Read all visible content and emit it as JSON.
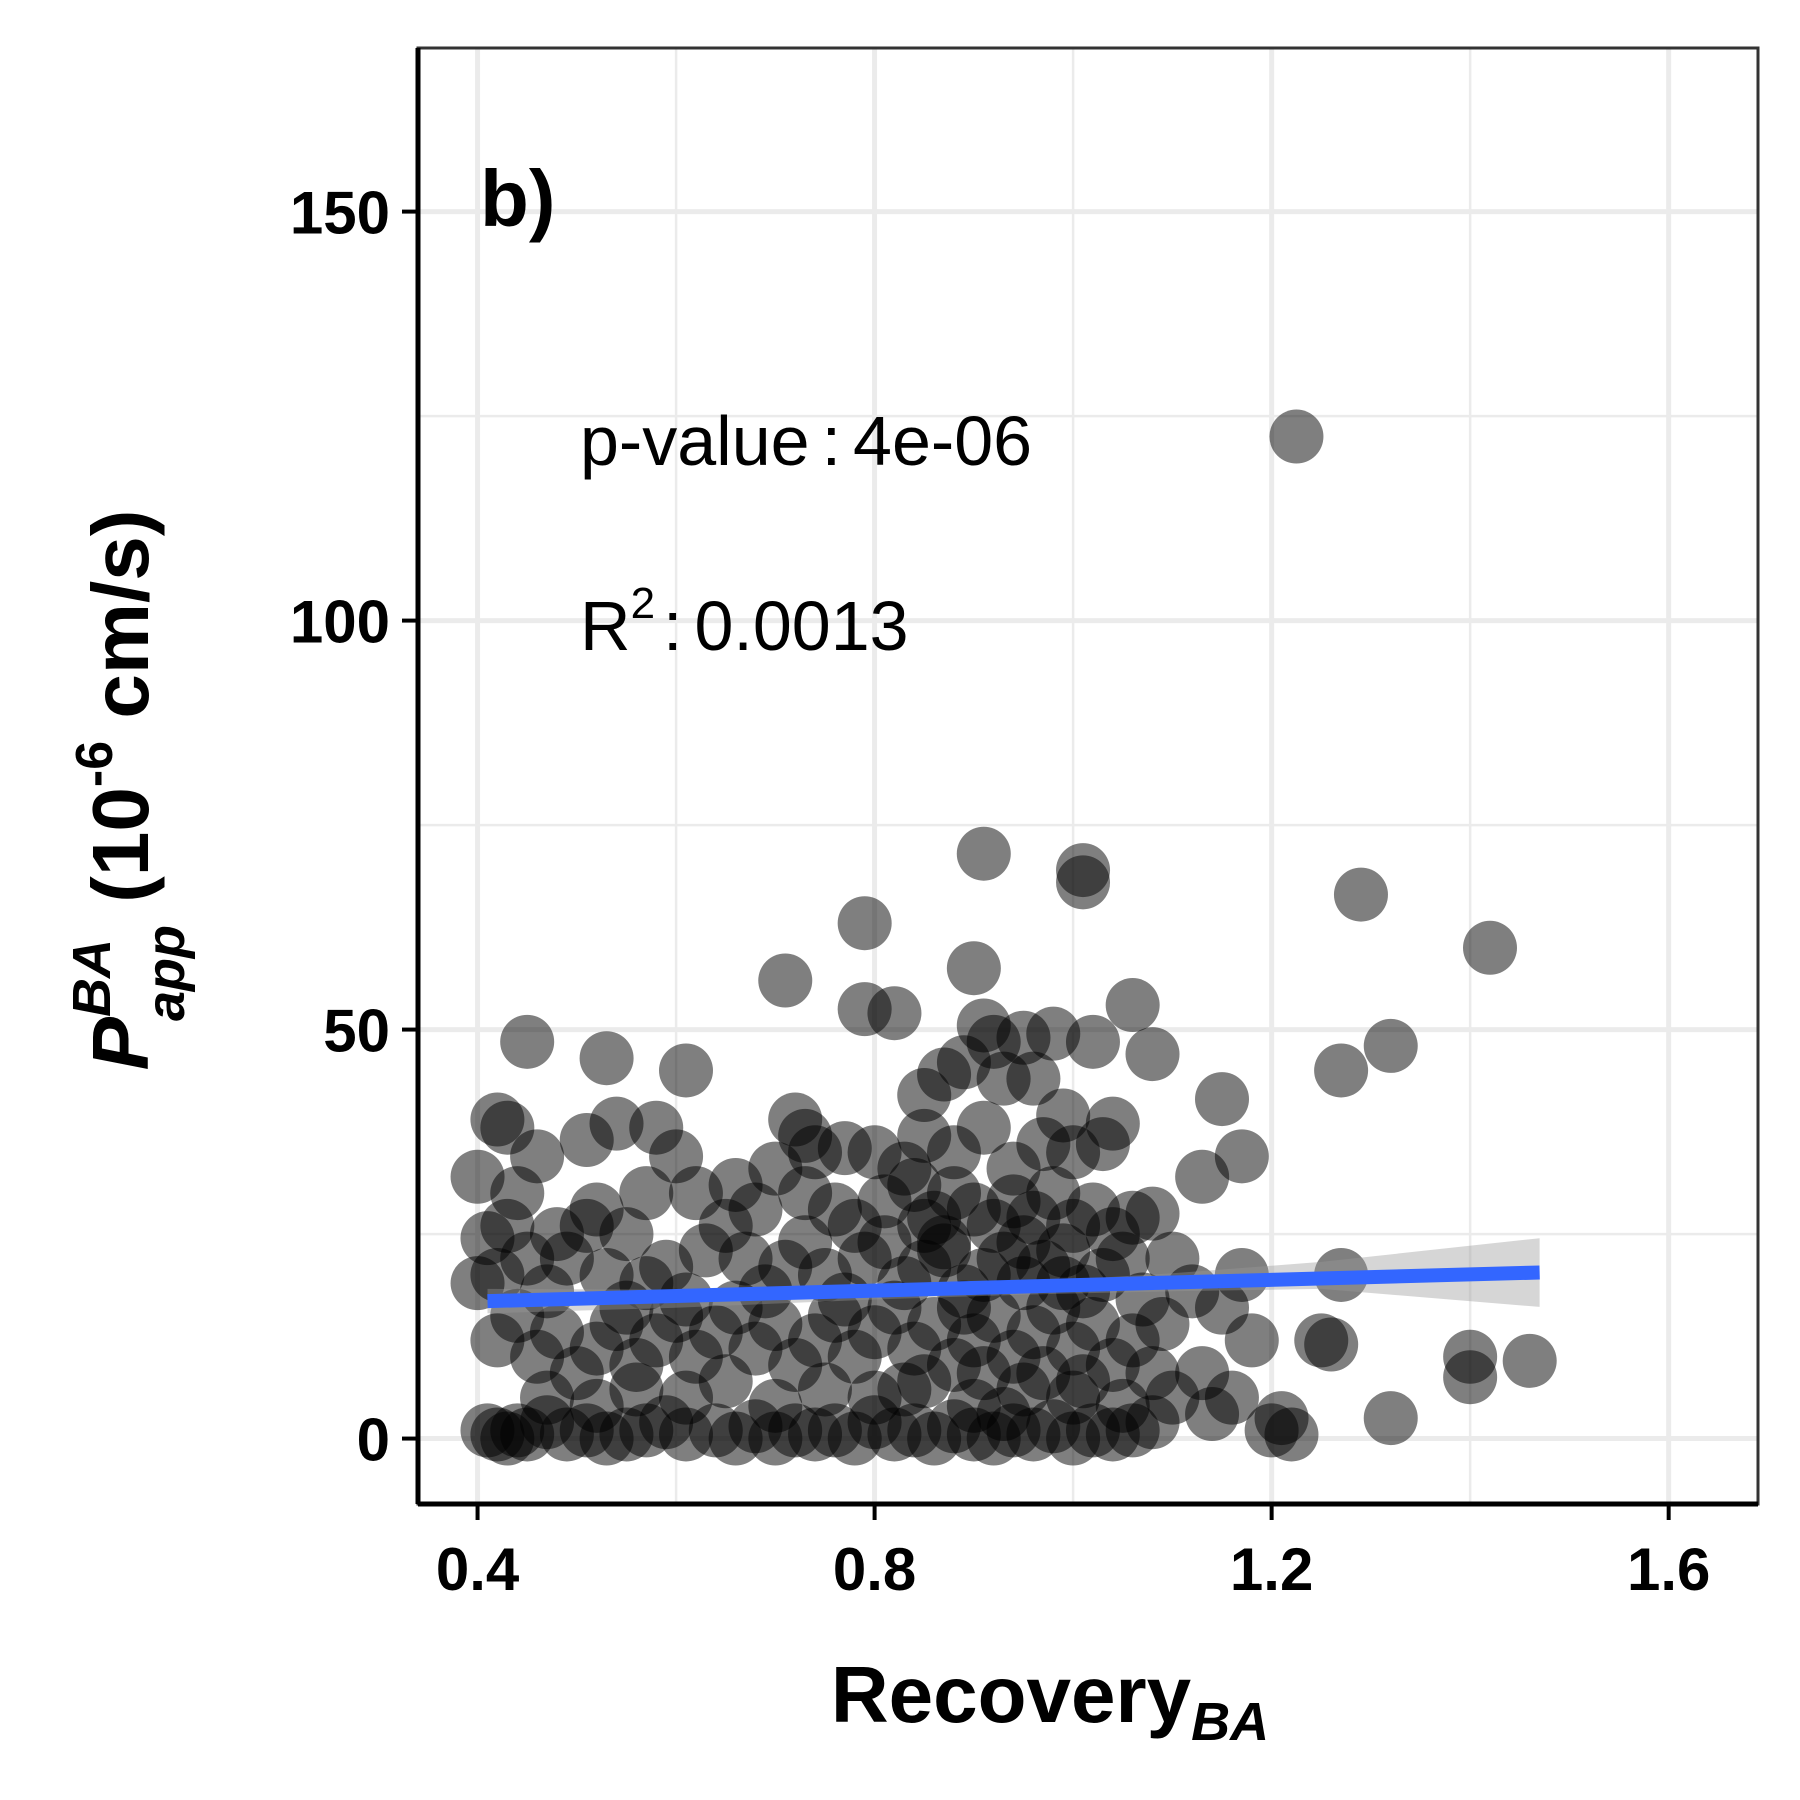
{
  "chart_data": {
    "type": "scatter",
    "panel_label": "b)",
    "xlabel": {
      "main": "Recovery",
      "sub": "BA"
    },
    "ylabel": {
      "main": "P",
      "sup": "BA",
      "sub": "app",
      "rest_open": " (10",
      "rest_sup": "-6",
      "rest_close": " cm/s)"
    },
    "xlim": [
      0.34,
      1.69
    ],
    "ylim": [
      -8,
      170
    ],
    "x_ticks": [
      0.4,
      0.8,
      1.2,
      1.6
    ],
    "x_tick_labels": [
      "0.4",
      "0.8",
      "1.2",
      "1.6"
    ],
    "y_ticks": [
      0,
      50,
      100,
      150
    ],
    "y_tick_labels": [
      "0",
      "50",
      "100",
      "150"
    ],
    "grid": true,
    "annotations": {
      "pvalue_label": "p-value",
      "pvalue_sep": ":",
      "pvalue_value": "4e-06",
      "r2_label": "R",
      "r2_sup": "2",
      "r2_sep": ":",
      "r2_value": "0.0013"
    },
    "point_color": "#000000",
    "point_opacity": 0.5,
    "fit_color": "#3366FF",
    "ci_color": "#999999",
    "fit_line": {
      "x": [
        0.41,
        1.47
      ],
      "y": [
        16.8,
        20.3
      ]
    },
    "fit_ci": {
      "x": [
        0.41,
        0.6,
        0.8,
        0.95,
        1.1,
        1.25,
        1.47
      ],
      "upper": [
        18.3,
        18.2,
        18.6,
        19.1,
        20.2,
        21.6,
        24.5
      ],
      "lower": [
        15.3,
        16.0,
        17.0,
        17.6,
        18.0,
        18.3,
        16.1
      ]
    },
    "points": [
      [
        1.225,
        122.5
      ],
      [
        0.91,
        71.5
      ],
      [
        1.01,
        69.5
      ],
      [
        1.01,
        68
      ],
      [
        1.29,
        66.5
      ],
      [
        0.79,
        63
      ],
      [
        1.42,
        60
      ],
      [
        0.9,
        57.5
      ],
      [
        0.71,
        56
      ],
      [
        0.79,
        52.5
      ],
      [
        0.82,
        52
      ],
      [
        1.06,
        53
      ],
      [
        0.91,
        50.5
      ],
      [
        0.92,
        48.5
      ],
      [
        0.95,
        49
      ],
      [
        0.98,
        49.5
      ],
      [
        1.02,
        48.5
      ],
      [
        1.08,
        47
      ],
      [
        0.45,
        48.5
      ],
      [
        0.53,
        46.5
      ],
      [
        0.61,
        45
      ],
      [
        1.32,
        48
      ],
      [
        1.27,
        45
      ],
      [
        1.15,
        41.5
      ],
      [
        1.17,
        34.5
      ],
      [
        1.13,
        32
      ],
      [
        1.08,
        27.5
      ],
      [
        1.04,
        38.5
      ],
      [
        0.43,
        38
      ],
      [
        0.42,
        39
      ],
      [
        0.46,
        34.5
      ],
      [
        0.51,
        36.5
      ],
      [
        0.54,
        38.5
      ],
      [
        0.58,
        38
      ],
      [
        0.6,
        34.5
      ],
      [
        0.72,
        39
      ],
      [
        0.73,
        37
      ],
      [
        0.74,
        35
      ],
      [
        0.77,
        35.5
      ],
      [
        0.8,
        35
      ],
      [
        0.83,
        33
      ],
      [
        0.85,
        42
      ],
      [
        0.87,
        44.5
      ],
      [
        0.89,
        46
      ],
      [
        0.93,
        44
      ],
      [
        0.96,
        44
      ],
      [
        0.99,
        39.5
      ],
      [
        1.0,
        35
      ],
      [
        1.03,
        36
      ],
      [
        0.4,
        32
      ],
      [
        0.44,
        30
      ],
      [
        0.48,
        25
      ],
      [
        0.52,
        28
      ],
      [
        0.55,
        25
      ],
      [
        0.57,
        30
      ],
      [
        0.62,
        30
      ],
      [
        0.66,
        31
      ],
      [
        0.68,
        28
      ],
      [
        0.7,
        33
      ],
      [
        0.73,
        30
      ],
      [
        0.76,
        28
      ],
      [
        0.78,
        26
      ],
      [
        0.81,
        29
      ],
      [
        0.84,
        31
      ],
      [
        0.86,
        27
      ],
      [
        0.88,
        30
      ],
      [
        0.9,
        28
      ],
      [
        0.92,
        26
      ],
      [
        0.94,
        29
      ],
      [
        0.96,
        27
      ],
      [
        0.98,
        30
      ],
      [
        1.0,
        26
      ],
      [
        1.02,
        28
      ],
      [
        1.04,
        25
      ],
      [
        1.06,
        27
      ],
      [
        1.1,
        22
      ],
      [
        1.12,
        18
      ],
      [
        1.15,
        16
      ],
      [
        1.17,
        20
      ],
      [
        1.18,
        12
      ],
      [
        1.27,
        20
      ],
      [
        1.25,
        12
      ],
      [
        1.26,
        11.5
      ],
      [
        1.4,
        10
      ],
      [
        1.4,
        7.5
      ],
      [
        1.46,
        9.5
      ],
      [
        1.32,
        2.5
      ],
      [
        1.21,
        2.5
      ],
      [
        1.2,
        1
      ],
      [
        1.22,
        0.5
      ],
      [
        1.1,
        5
      ],
      [
        1.13,
        8
      ],
      [
        1.14,
        3
      ],
      [
        1.16,
        5
      ],
      [
        0.41,
        24.5
      ],
      [
        0.42,
        20
      ],
      [
        0.43,
        26
      ],
      [
        0.45,
        22
      ],
      [
        0.47,
        18
      ],
      [
        0.49,
        22
      ],
      [
        0.51,
        26
      ],
      [
        0.53,
        20
      ],
      [
        0.55,
        16
      ],
      [
        0.57,
        19
      ],
      [
        0.59,
        21
      ],
      [
        0.61,
        17
      ],
      [
        0.63,
        23
      ],
      [
        0.65,
        26
      ],
      [
        0.67,
        22
      ],
      [
        0.69,
        18
      ],
      [
        0.71,
        21
      ],
      [
        0.73,
        24
      ],
      [
        0.75,
        20
      ],
      [
        0.77,
        17
      ],
      [
        0.79,
        22
      ],
      [
        0.81,
        24
      ],
      [
        0.83,
        19
      ],
      [
        0.85,
        21
      ],
      [
        0.87,
        23
      ],
      [
        0.89,
        18
      ],
      [
        0.91,
        20
      ],
      [
        0.93,
        22
      ],
      [
        0.95,
        19
      ],
      [
        0.97,
        21
      ],
      [
        0.99,
        23
      ],
      [
        1.01,
        18
      ],
      [
        1.03,
        20
      ],
      [
        1.05,
        22
      ],
      [
        1.07,
        17
      ],
      [
        1.09,
        14
      ],
      [
        0.4,
        19
      ],
      [
        0.42,
        12
      ],
      [
        0.44,
        15
      ],
      [
        0.46,
        10
      ],
      [
        0.48,
        13
      ],
      [
        0.5,
        8
      ],
      [
        0.52,
        11
      ],
      [
        0.54,
        14
      ],
      [
        0.56,
        9
      ],
      [
        0.58,
        12
      ],
      [
        0.6,
        15
      ],
      [
        0.62,
        10
      ],
      [
        0.64,
        13
      ],
      [
        0.66,
        16
      ],
      [
        0.68,
        11
      ],
      [
        0.7,
        14
      ],
      [
        0.72,
        9
      ],
      [
        0.74,
        12
      ],
      [
        0.76,
        15
      ],
      [
        0.78,
        10
      ],
      [
        0.8,
        13
      ],
      [
        0.82,
        16
      ],
      [
        0.84,
        11
      ],
      [
        0.86,
        14
      ],
      [
        0.88,
        9
      ],
      [
        0.9,
        12
      ],
      [
        0.92,
        15
      ],
      [
        0.94,
        10
      ],
      [
        0.96,
        13
      ],
      [
        0.98,
        16
      ],
      [
        1.0,
        11
      ],
      [
        1.02,
        14
      ],
      [
        1.04,
        9
      ],
      [
        1.06,
        12
      ],
      [
        1.08,
        8
      ],
      [
        0.41,
        1
      ],
      [
        0.42,
        0.5
      ],
      [
        0.43,
        0
      ],
      [
        0.44,
        1
      ],
      [
        0.45,
        0.5
      ],
      [
        0.47,
        2
      ],
      [
        0.49,
        0.5
      ],
      [
        0.51,
        1
      ],
      [
        0.53,
        0
      ],
      [
        0.55,
        0.5
      ],
      [
        0.57,
        1
      ],
      [
        0.59,
        2
      ],
      [
        0.61,
        0.5
      ],
      [
        0.64,
        1
      ],
      [
        0.66,
        0
      ],
      [
        0.68,
        1.5
      ],
      [
        0.7,
        0
      ],
      [
        0.72,
        1
      ],
      [
        0.74,
        0.5
      ],
      [
        0.76,
        1
      ],
      [
        0.78,
        0
      ],
      [
        0.8,
        2
      ],
      [
        0.82,
        0.5
      ],
      [
        0.84,
        1
      ],
      [
        0.86,
        0
      ],
      [
        0.88,
        1.5
      ],
      [
        0.9,
        0.5
      ],
      [
        0.92,
        0
      ],
      [
        0.94,
        1
      ],
      [
        0.96,
        0.5
      ],
      [
        0.98,
        1.5
      ],
      [
        1.0,
        0
      ],
      [
        1.02,
        1
      ],
      [
        1.04,
        0.5
      ],
      [
        1.06,
        1
      ],
      [
        1.08,
        2
      ],
      [
        0.47,
        5
      ],
      [
        0.52,
        4
      ],
      [
        0.56,
        6
      ],
      [
        0.61,
        5
      ],
      [
        0.65,
        7
      ],
      [
        0.7,
        4
      ],
      [
        0.75,
        6
      ],
      [
        0.8,
        5
      ],
      [
        0.85,
        7
      ],
      [
        0.9,
        4
      ],
      [
        0.95,
        6
      ],
      [
        1.0,
        5
      ],
      [
        1.05,
        4
      ],
      [
        0.85,
        37
      ],
      [
        0.88,
        35
      ],
      [
        0.91,
        38
      ],
      [
        0.94,
        33
      ],
      [
        0.97,
        36
      ],
      [
        0.87,
        24
      ],
      [
        0.89,
        16
      ],
      [
        0.91,
        8
      ],
      [
        0.93,
        3
      ],
      [
        0.95,
        24
      ],
      [
        0.97,
        8
      ],
      [
        0.83,
        6
      ],
      [
        0.85,
        26
      ],
      [
        0.99,
        19
      ],
      [
        1.01,
        7
      ]
    ]
  }
}
